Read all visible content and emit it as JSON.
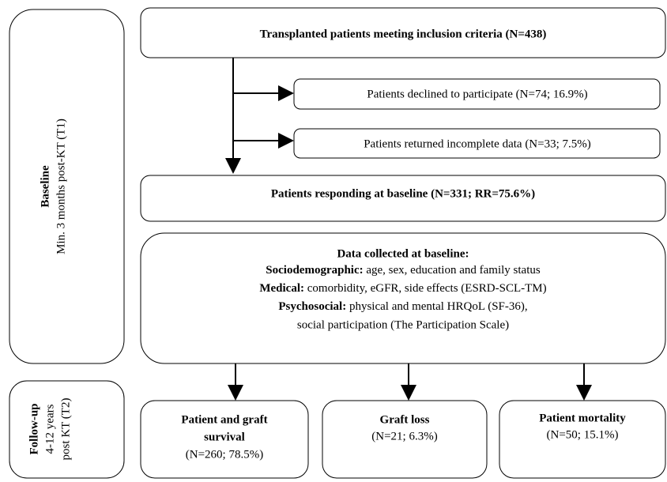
{
  "phases": [
    {
      "title": "Baseline",
      "lines": [
        "Min. 3 months post-KT (T1)"
      ]
    },
    {
      "title": "Follow-up",
      "lines": [
        "4-12 years",
        "post KT (T2)"
      ]
    }
  ],
  "nodes": [
    {
      "label": "Transplanted patients meeting inclusion criteria (N=438)"
    },
    {
      "label": "Patients declined to participate (N=74; 16.9%)"
    },
    {
      "label": "Patients returned incomplete data (N=33; 7.5%)"
    },
    {
      "label": "Patients responding at baseline (N=331; RR=75.6%)"
    }
  ],
  "baseline_data": {
    "title": "Data collected at baseline:",
    "items": [
      {
        "label": "Sociodemographic:",
        "text": " age, sex, education and family status"
      },
      {
        "label": "Medical:",
        "text": " comorbidity, eGFR, side effects (ESRD-SCL-TM)"
      },
      {
        "label": "Psychosocial:",
        "text": " physical and mental HRQoL (SF-36),"
      }
    ],
    "extra": "social participation (The Participation Scale)"
  },
  "outcomes": [
    {
      "label": [
        "Patient and graft",
        "survival"
      ],
      "stat": "(N=260; 78.5%)"
    },
    {
      "label": [
        "Graft loss"
      ],
      "stat": "(N=21; 6.3%)"
    },
    {
      "label": [
        "Patient mortality"
      ],
      "stat": "(N=50; 15.1%)"
    }
  ]
}
